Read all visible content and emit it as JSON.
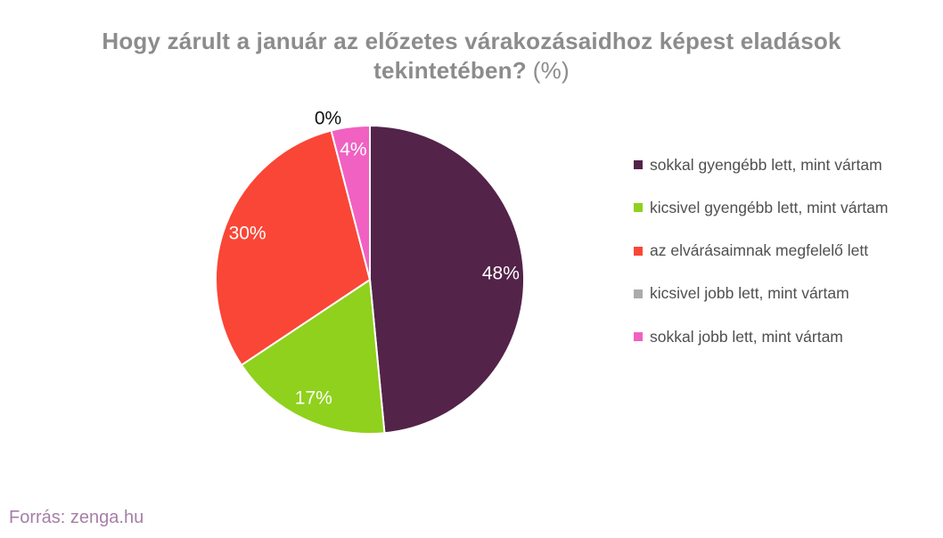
{
  "title": {
    "line1": "Hogy zárult a január az előzetes várakozásaidhoz képest eladások",
    "line2": "tekintetében?",
    "line2_suffix": "(%)",
    "color": "#8C8C8C"
  },
  "chart_data": {
    "type": "pie",
    "title": "Hogy zárult a január az előzetes várakozásaidhoz képest eladások tekintetében? (%)",
    "categories": [
      "sokkal gyengébb lett, mint vártam",
      "kicsivel gyengébb lett, mint vártam",
      "az elvárásaimnak megfelelő lett",
      "kicsivel jobb lett, mint vártam",
      "sokkal jobb lett, mint vártam"
    ],
    "values": [
      48,
      17,
      30,
      0,
      4
    ],
    "value_labels": [
      "48%",
      "17%",
      "30%",
      "0%",
      "4%"
    ],
    "colors": [
      "#532349",
      "#8FD11D",
      "#FA4636",
      "#ABABAB",
      "#F061C2"
    ],
    "slice_border_color": "#FFFFFF",
    "slice_label_color_inside": "#FFFFFF",
    "slice_label_color_outside": "#111111",
    "start_angle_deg": 0,
    "direction": "clockwise",
    "legend_position": "right",
    "legend_text_color": "#4F4F4F"
  },
  "source": {
    "text": "Forrás: zenga.hu",
    "color": "#A67FA6"
  }
}
